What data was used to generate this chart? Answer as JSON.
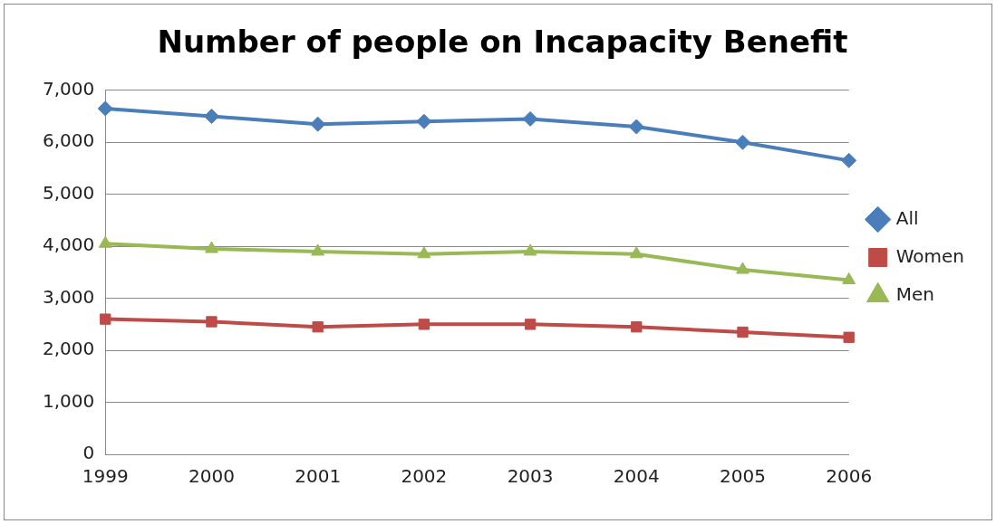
{
  "chart_data": {
    "type": "line",
    "title": "Number of people on Incapacity Benefit",
    "categories": [
      "1999",
      "2000",
      "2001",
      "2002",
      "2003",
      "2004",
      "2005",
      "2006"
    ],
    "series": [
      {
        "name": "All",
        "color": "#4a7ebb",
        "marker": "diamond",
        "values": [
          6650,
          6500,
          6350,
          6400,
          6450,
          6300,
          6000,
          5650
        ]
      },
      {
        "name": "Women",
        "color": "#be4b48",
        "marker": "square",
        "values": [
          2600,
          2550,
          2450,
          2500,
          2500,
          2450,
          2350,
          2250
        ]
      },
      {
        "name": "Men",
        "color": "#98b954",
        "marker": "triangle",
        "values": [
          4050,
          3950,
          3900,
          3850,
          3900,
          3850,
          3550,
          3350
        ]
      }
    ],
    "ylim": [
      0,
      7000
    ],
    "yticks": [
      0,
      {
        "value": 1000,
        "label": "1,000"
      },
      {
        "value": 2000,
        "label": "2,000"
      },
      {
        "value": 3000,
        "label": "3,000"
      },
      {
        "value": 4000,
        "label": "4,000"
      },
      {
        "value": 5000,
        "label": "5,000"
      },
      {
        "value": 6000,
        "label": "6,000"
      },
      {
        "value": 7000,
        "label": "7,000"
      }
    ],
    "grid": "y",
    "legend": "right"
  }
}
